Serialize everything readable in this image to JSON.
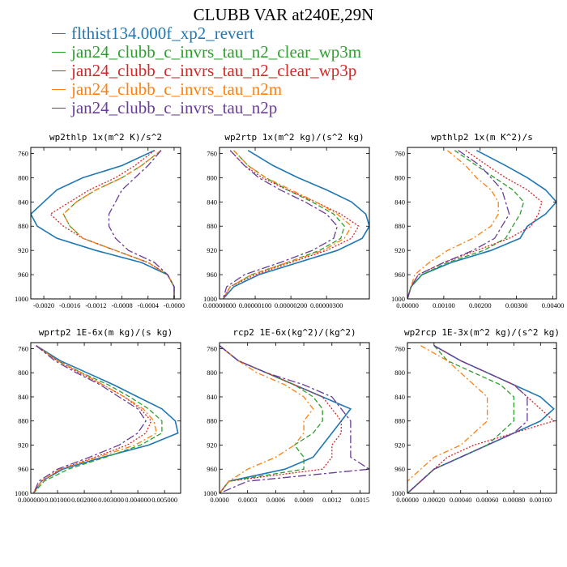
{
  "title": "CLUBB VAR at240E,29N",
  "legend": [
    {
      "name": "flthist134.000f_xp2_revert",
      "color": "#1f77b4"
    },
    {
      "name": "jan24_clubb_c_invrs_tau_n2_clear_wp3m",
      "color": "#2ca02c"
    },
    {
      "name": "jan24_clubb_c_invrs_tau_n2_clear_wp3p",
      "color": "#d62728"
    },
    {
      "name": "jan24_clubb_c_invrs_tau_n2m",
      "color": "#ff7f0e"
    },
    {
      "name": "jan24_clubb_c_invrs_tau_n2p",
      "color": "#6a3d9a"
    }
  ],
  "styles": [
    "solid",
    "dashed",
    "dotted",
    "dashdot",
    "dashdot2"
  ],
  "chart_data": [
    {
      "type": "line",
      "title": "wp2thlp  1x(m^2 K)/s^2",
      "xlim": [
        -0.0022,
        0.0001
      ],
      "ylim": [
        1000,
        750
      ],
      "xticks": [
        -0.002,
        -0.0016,
        -0.0012,
        -0.0008,
        -0.0004,
        0.0
      ],
      "xtick_labels": [
        "-0.0020",
        "-0.0016",
        "-0.0012",
        "-0.0008",
        "-0.0004",
        "-0.0000"
      ],
      "yticks": [
        760,
        800,
        840,
        880,
        920,
        960,
        1000
      ],
      "y": [
        755,
        780,
        800,
        820,
        840,
        860,
        880,
        900,
        920,
        940,
        960,
        980,
        1000
      ],
      "series": [
        {
          "values": [
            -0.0003,
            -0.0008,
            -0.0014,
            -0.0018,
            -0.002,
            -0.0022,
            -0.0021,
            -0.0018,
            -0.0012,
            -0.0005,
            -0.0001,
            0.0,
            0.0
          ]
        },
        {
          "values": [
            -0.0002,
            -0.0005,
            -0.0008,
            -0.0012,
            -0.0015,
            -0.0017,
            -0.0016,
            -0.0014,
            -0.0009,
            -0.0004,
            -0.0001,
            0.0,
            0.0
          ]
        },
        {
          "values": [
            -0.0003,
            -0.0006,
            -0.0009,
            -0.0013,
            -0.0016,
            -0.0019,
            -0.0017,
            -0.0014,
            -0.0009,
            -0.0004,
            -0.0001,
            0.0,
            0.0
          ]
        },
        {
          "values": [
            -0.0002,
            -0.0005,
            -0.0008,
            -0.0012,
            -0.0015,
            -0.0017,
            -0.0016,
            -0.0014,
            -0.0009,
            -0.0004,
            -0.0001,
            0.0,
            0.0
          ]
        },
        {
          "values": [
            -0.0002,
            -0.0004,
            -0.0006,
            -0.0008,
            -0.0009,
            -0.001,
            -0.001,
            -0.0009,
            -0.0007,
            -0.0003,
            -0.0001,
            0.0,
            0.0
          ]
        }
      ]
    },
    {
      "type": "line",
      "title": "wp2rtp  1x(m^2 kg)/(s^2 kg)",
      "xlim": [
        0.0,
        4.2e-06
      ],
      "ylim": [
        1000,
        750
      ],
      "xticks": [
        0.0,
        1e-06,
        2e-06,
        3e-06
      ],
      "xtick_labels": [
        "0.00000000",
        "0.00000100",
        "0.00000200",
        "0.00000300"
      ],
      "yticks": [
        760,
        800,
        840,
        880,
        920,
        960,
        1000
      ],
      "y": [
        755,
        780,
        800,
        820,
        840,
        860,
        880,
        900,
        920,
        940,
        960,
        980,
        1000
      ],
      "series": [
        {
          "values": [
            8e-07,
            1.5e-06,
            2.2e-06,
            3e-06,
            3.7e-06,
            4.1e-06,
            4.2e-06,
            4e-06,
            3.3e-06,
            2.2e-06,
            1.1e-06,
            4e-07,
            1e-07
          ]
        },
        {
          "values": [
            4e-07,
            8e-07,
            1.3e-06,
            1.9e-06,
            2.6e-06,
            3.2e-06,
            3.5e-06,
            3.4e-06,
            2.8e-06,
            1.9e-06,
            9e-07,
            3e-07,
            1e-07
          ]
        },
        {
          "values": [
            3e-07,
            7e-07,
            1.2e-06,
            1.9e-06,
            2.7e-06,
            3.4e-06,
            3.9e-06,
            3.7e-06,
            3e-06,
            2e-06,
            1e-06,
            3e-07,
            1e-07
          ]
        },
        {
          "values": [
            4e-07,
            8e-07,
            1.3e-06,
            2e-06,
            2.7e-06,
            3.3e-06,
            3.7e-06,
            3.5e-06,
            2.9e-06,
            1.9e-06,
            9e-07,
            3e-07,
            1e-07
          ]
        },
        {
          "values": [
            3e-07,
            7e-07,
            1.1e-06,
            1.7e-06,
            2.4e-06,
            3e-06,
            3.3e-06,
            3.2e-06,
            2.6e-06,
            1.7e-06,
            7e-07,
            2e-07,
            1e-07
          ]
        }
      ]
    },
    {
      "type": "line",
      "title": "wpthlp2  1x(m K^2)/s",
      "xlim": [
        0.0,
        0.0041
      ],
      "ylim": [
        1000,
        750
      ],
      "xticks": [
        0.0,
        0.001,
        0.002,
        0.003,
        0.004
      ],
      "xtick_labels": [
        "0.00000",
        "0.00100",
        "0.00200",
        "0.00300",
        "0.00400"
      ],
      "yticks": [
        760,
        800,
        840,
        880,
        920,
        960,
        1000
      ],
      "y": [
        755,
        780,
        800,
        820,
        840,
        860,
        880,
        900,
        920,
        940,
        960,
        980,
        1000
      ],
      "series": [
        {
          "values": [
            0.0019,
            0.0027,
            0.0033,
            0.0038,
            0.0041,
            0.0038,
            0.0033,
            0.0031,
            0.0023,
            0.0012,
            0.0004,
            0.0001,
            0.0
          ]
        },
        {
          "values": [
            0.0013,
            0.0019,
            0.0024,
            0.0029,
            0.0032,
            0.0031,
            0.0029,
            0.0027,
            0.0021,
            0.0011,
            0.0004,
            0.0001,
            0.0
          ]
        },
        {
          "values": [
            0.0016,
            0.0022,
            0.0027,
            0.0033,
            0.0037,
            0.0036,
            0.0034,
            0.0028,
            0.0019,
            0.001,
            0.0003,
            0.0001,
            0.0
          ]
        },
        {
          "values": [
            0.0011,
            0.0016,
            0.0019,
            0.0023,
            0.0025,
            0.0025,
            0.0023,
            0.0018,
            0.0011,
            0.0006,
            0.0002,
            0.0001,
            0.0
          ]
        },
        {
          "values": [
            0.0014,
            0.002,
            0.0023,
            0.0026,
            0.0027,
            0.0028,
            0.0026,
            0.0024,
            0.0018,
            0.001,
            0.0003,
            0.0001,
            0.0
          ]
        }
      ]
    },
    {
      "type": "line",
      "title": "wprtp2  1E-6x(m kg)/(s kg)",
      "xlim": [
        0.0,
        0.0056
      ],
      "ylim": [
        1000,
        750
      ],
      "xticks": [
        0.0,
        0.001,
        0.002,
        0.003,
        0.004,
        0.005
      ],
      "xtick_labels": [
        "0.000000",
        "0.001000",
        "0.002000",
        "0.003000",
        "0.004000",
        "0.005000"
      ],
      "yticks": [
        760,
        800,
        840,
        880,
        920,
        960,
        1000
      ],
      "y": [
        755,
        780,
        800,
        820,
        840,
        860,
        880,
        900,
        920,
        940,
        960,
        980,
        1000
      ],
      "series": [
        {
          "values": [
            0.0002,
            0.0011,
            0.0021,
            0.0031,
            0.004,
            0.0049,
            0.0054,
            0.0055,
            0.0044,
            0.0027,
            0.0012,
            0.0004,
            0.0001
          ]
        },
        {
          "values": [
            0.0002,
            0.001,
            0.0019,
            0.0029,
            0.0037,
            0.0044,
            0.0049,
            0.0049,
            0.0041,
            0.0028,
            0.0014,
            0.0005,
            0.0001
          ]
        },
        {
          "values": [
            0.0002,
            0.001,
            0.0018,
            0.0027,
            0.0035,
            0.0041,
            0.0045,
            0.0043,
            0.0036,
            0.0024,
            0.0011,
            0.0004,
            0.0001
          ]
        },
        {
          "values": [
            0.0002,
            0.001,
            0.0019,
            0.0027,
            0.0035,
            0.0042,
            0.0046,
            0.0047,
            0.0039,
            0.0025,
            0.0011,
            0.0004,
            0.0001
          ]
        },
        {
          "values": [
            0.0002,
            0.0009,
            0.0017,
            0.0026,
            0.0033,
            0.004,
            0.0043,
            0.004,
            0.0033,
            0.0022,
            0.001,
            0.0003,
            0.0001
          ]
        }
      ]
    },
    {
      "type": "line",
      "title": "rcp2  1E-6x(kg^2)/(kg^2)",
      "xlim": [
        0.0,
        0.0016
      ],
      "ylim": [
        1000,
        750
      ],
      "xticks": [
        0.0,
        0.0003,
        0.0006,
        0.0009,
        0.0012,
        0.0015
      ],
      "xtick_labels": [
        "0.0000",
        "0.0003",
        "0.0006",
        "0.0009",
        "0.0012",
        "0.0015"
      ],
      "yticks": [
        760,
        800,
        840,
        880,
        920,
        960,
        1000
      ],
      "y": [
        755,
        780,
        800,
        820,
        840,
        860,
        880,
        900,
        920,
        940,
        960,
        980,
        1000
      ],
      "series": [
        {
          "values": [
            0.0,
            0.0002,
            0.0005,
            0.0008,
            0.0011,
            0.0014,
            0.0013,
            0.0012,
            0.0011,
            0.001,
            0.0007,
            0.0001,
            0.0
          ]
        },
        {
          "values": [
            0.0,
            0.0002,
            0.0005,
            0.0008,
            0.001,
            0.0011,
            0.0011,
            0.001,
            0.0008,
            0.0009,
            0.0009,
            0.0001,
            0.0
          ]
        },
        {
          "values": [
            0.0,
            0.0002,
            0.0005,
            0.0008,
            0.0011,
            0.0012,
            0.0013,
            0.0013,
            0.0012,
            0.0012,
            0.0011,
            0.0001,
            0.0
          ]
        },
        {
          "values": [
            0.0,
            0.0002,
            0.0004,
            0.0007,
            0.0009,
            0.001,
            0.0009,
            0.0009,
            0.0008,
            0.0006,
            0.0003,
            0.0001,
            0.0
          ]
        },
        {
          "values": [
            0.0,
            0.0002,
            0.0005,
            0.0009,
            0.0012,
            0.0013,
            0.0014,
            0.0014,
            0.0014,
            0.0014,
            0.0016,
            0.0003,
            0.0
          ]
        }
      ]
    },
    {
      "type": "line",
      "title": "wp2rcp  1E-3x(m^2 kg)/(s^2 kg)",
      "xlim": [
        0.0,
        0.00112
      ],
      "ylim": [
        1000,
        750
      ],
      "xticks": [
        0.0,
        0.0002,
        0.0004,
        0.0006,
        0.0008,
        0.001
      ],
      "xtick_labels": [
        "0.00000",
        "0.00020",
        "0.00040",
        "0.00060",
        "0.00080",
        "0.00100"
      ],
      "yticks": [
        760,
        800,
        840,
        880,
        920,
        960,
        1000
      ],
      "y": [
        755,
        780,
        800,
        820,
        840,
        860,
        880,
        900,
        920,
        940,
        960,
        980,
        1000
      ],
      "series": [
        {
          "values": [
            0.0002,
            0.0004,
            0.0006,
            0.0008,
            0.001,
            0.0011,
            0.001,
            0.0008,
            0.0006,
            0.0004,
            0.0002,
            0.0001,
            0.0
          ]
        },
        {
          "values": [
            0.0002,
            0.0003,
            0.0005,
            0.0007,
            0.0008,
            0.0008,
            0.0008,
            0.0007,
            0.0006,
            0.0004,
            0.0002,
            0.0001,
            0.0
          ]
        },
        {
          "values": [
            0.0002,
            0.0004,
            0.0006,
            0.0008,
            0.0009,
            0.001,
            0.0011,
            0.0008,
            0.0005,
            0.0003,
            0.0002,
            0.0001,
            0.0
          ]
        },
        {
          "values": [
            0.0001,
            0.0003,
            0.0004,
            0.0005,
            0.0006,
            0.0006,
            0.0006,
            0.0005,
            0.0004,
            0.0002,
            0.0001,
            0.0,
            0.0
          ]
        },
        {
          "values": [
            0.0002,
            0.0004,
            0.0006,
            0.0008,
            0.0009,
            0.0009,
            0.0009,
            0.0008,
            0.0006,
            0.0004,
            0.0002,
            0.0001,
            0.0
          ]
        }
      ]
    }
  ]
}
